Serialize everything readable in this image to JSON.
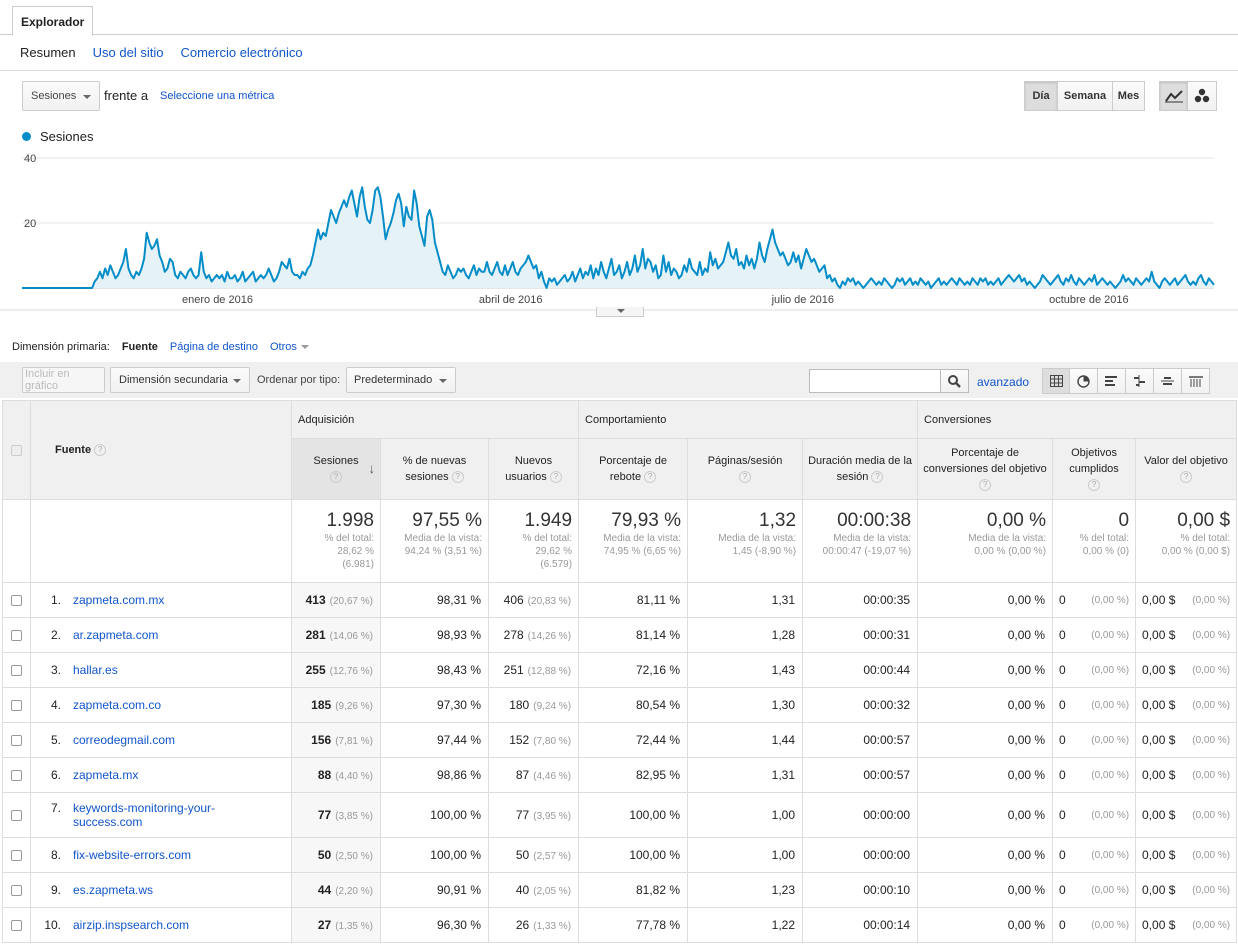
{
  "top_tab": "Explorador",
  "subnav": {
    "current": "Resumen",
    "links": [
      "Uso del sitio",
      "Comercio electrónico"
    ]
  },
  "controls": {
    "metric": "Sesiones",
    "vs_label": "frente a",
    "select_metric": "Seleccione una métrica",
    "periods": [
      "Día",
      "Semana",
      "Mes"
    ],
    "active_period": "Día"
  },
  "chart_data": {
    "type": "area",
    "title": "",
    "series": [
      {
        "name": "Sesiones",
        "color": "#058dc7"
      }
    ],
    "ylim": [
      0,
      40
    ],
    "yticks": [
      "40",
      "20"
    ],
    "xticks": [
      "enero de 2016",
      "abril de 2016",
      "julio de 2016",
      "octubre de 2016"
    ],
    "values": [
      0,
      0,
      0,
      0,
      0,
      0,
      0,
      0,
      0,
      0,
      0,
      0,
      0,
      0,
      0,
      0,
      0,
      0,
      0,
      0,
      0,
      0,
      0,
      0,
      0,
      0,
      0,
      0,
      2,
      3,
      5,
      3,
      6,
      4,
      7,
      5,
      3,
      4,
      6,
      8,
      12,
      6,
      4,
      3,
      5,
      4,
      6,
      9,
      17,
      14,
      12,
      13,
      15,
      10,
      8,
      5,
      6,
      9,
      8,
      4,
      3,
      5,
      4,
      3,
      5,
      6,
      4,
      3,
      4,
      11,
      5,
      3,
      4,
      2,
      3,
      4,
      3,
      4,
      2,
      5,
      3,
      3,
      4,
      2,
      3,
      5,
      2,
      3,
      4,
      5,
      2,
      3,
      4,
      3,
      4,
      6,
      4,
      2,
      3,
      5,
      8,
      7,
      6,
      9,
      5,
      4,
      4,
      3,
      5,
      4,
      6,
      7,
      10,
      14,
      18,
      15,
      17,
      16,
      20,
      24,
      22,
      20,
      23,
      25,
      27,
      25,
      28,
      30,
      26,
      22,
      28,
      31,
      25,
      21,
      20,
      24,
      30,
      31,
      28,
      22,
      15,
      18,
      20,
      23,
      27,
      29,
      26,
      19,
      25,
      22,
      21,
      30,
      26,
      19,
      16,
      13,
      22,
      24,
      21,
      14,
      11,
      8,
      5,
      4,
      7,
      5,
      3,
      4,
      6,
      5,
      6,
      4,
      3,
      5,
      7,
      4,
      6,
      5,
      5,
      8,
      5,
      4,
      6,
      8,
      5,
      4,
      7,
      4,
      6,
      8,
      5,
      4,
      6,
      7,
      8,
      10,
      8,
      6,
      7,
      3,
      5,
      2,
      0,
      3,
      2,
      3,
      1,
      2,
      3,
      4,
      2,
      3,
      5,
      2,
      4,
      6,
      3,
      5,
      4,
      7,
      3,
      6,
      4,
      8,
      5,
      3,
      6,
      9,
      4,
      5,
      7,
      3,
      5,
      8,
      4,
      6,
      10,
      5,
      7,
      12,
      6,
      9,
      8,
      5,
      7,
      3,
      4,
      10,
      5,
      8,
      4,
      6,
      5,
      3,
      4,
      7,
      5,
      9,
      6,
      5,
      4,
      8,
      4,
      6,
      5,
      11,
      7,
      9,
      6,
      7,
      8,
      11,
      14,
      10,
      9,
      12,
      7,
      8,
      6,
      10,
      7,
      9,
      6,
      9,
      14,
      10,
      8,
      12,
      15,
      18,
      14,
      12,
      10,
      11,
      9,
      7,
      8,
      11,
      8,
      10,
      6,
      9,
      12,
      10,
      8,
      9,
      7,
      5,
      6,
      7,
      3,
      4,
      2,
      3,
      1,
      0,
      2,
      1,
      3,
      2,
      3,
      1,
      2,
      1,
      0,
      1,
      2,
      3,
      2,
      1,
      2,
      1,
      3,
      2,
      1,
      0,
      1,
      3,
      2,
      3,
      1,
      2,
      3,
      1,
      2,
      1,
      3,
      2,
      1,
      2,
      0,
      1,
      2,
      3,
      1,
      2,
      1,
      2,
      3,
      2,
      1,
      3,
      2,
      1,
      2,
      1,
      3,
      2,
      1,
      3,
      2,
      3,
      1,
      2,
      1,
      2,
      3,
      1,
      2,
      3,
      4,
      3,
      2,
      3,
      4,
      2,
      3,
      1,
      2,
      1,
      0,
      1,
      2,
      4,
      3,
      2,
      1,
      2,
      3,
      4,
      2,
      1,
      3,
      2,
      4,
      2,
      1,
      3,
      2,
      1,
      2,
      3,
      2,
      4,
      1,
      2,
      3,
      2,
      1,
      2,
      1,
      0,
      1,
      2,
      4,
      2,
      3,
      2,
      1,
      3,
      2,
      1,
      2,
      3,
      2,
      5,
      2,
      1,
      0,
      2,
      3,
      2,
      1,
      2,
      3,
      1,
      2,
      3,
      4,
      2,
      1,
      2,
      1,
      3,
      4,
      2,
      1,
      3,
      2,
      1
    ]
  },
  "dimension": {
    "label": "Dimensión primaria:",
    "current": "Fuente",
    "link": "Página de destino",
    "others": "Otros"
  },
  "toolbar": {
    "plot_rows": "Incluir en gráfico",
    "secondary": "Dimensión secundaria",
    "sort_label": "Ordenar por tipo:",
    "sort_value": "Predeterminado",
    "advanced": "avanzado"
  },
  "table": {
    "groups": {
      "acq": "Adquisición",
      "beh": "Comportamiento",
      "conv": "Conversiones"
    },
    "headers": {
      "source": "Fuente",
      "sessions": "Sesiones",
      "new_sessions": "% de nuevas sesiones",
      "new_users": "Nuevos usuarios",
      "bounce": "Porcentaje de rebote",
      "pages": "Páginas/sesión",
      "duration": "Duración media de la sesión",
      "conv_rate": "Porcentaje de conversiones del objetivo",
      "goals": "Objetivos cumplidos",
      "goal_value": "Valor del objetivo"
    },
    "totals": {
      "sessions": {
        "big": "1.998",
        "s1": "% del total:",
        "s2": "28,62 %",
        "s3": "(6.981)"
      },
      "new_sessions": {
        "big": "97,55 %",
        "s1": "Media de la vista:",
        "s2": "94,24 % (3,51 %)"
      },
      "new_users": {
        "big": "1.949",
        "s1": "% del total:",
        "s2": "29,62 %",
        "s3": "(6.579)"
      },
      "bounce": {
        "big": "79,93 %",
        "s1": "Media de la vista:",
        "s2": "74,95 % (6,65 %)"
      },
      "pages": {
        "big": "1,32",
        "s1": "Media de la vista:",
        "s2": "1,45 (-8,90 %)"
      },
      "duration": {
        "big": "00:00:38",
        "s1": "Media de la vista:",
        "s2": "00:00:47 (-19,07 %)"
      },
      "conv_rate": {
        "big": "0,00 %",
        "s1": "Media de la vista:",
        "s2": "0,00 % (0,00 %)"
      },
      "goals": {
        "big": "0",
        "s1": "% del total:",
        "s2": "0,00 % (0)"
      },
      "goal_value": {
        "big": "0,00 $",
        "s1": "% del total:",
        "s2": "0,00 % (0,00 $)"
      }
    },
    "rows": [
      {
        "idx": "1.",
        "source": "zapmeta.com.mx",
        "sessions": "413",
        "sessions_pct": "(20,67 %)",
        "new_sessions": "98,31 %",
        "new_users": "406",
        "new_users_pct": "(20,83 %)",
        "bounce": "81,11 %",
        "pages": "1,31",
        "duration": "00:00:35",
        "conv_rate": "0,00 %",
        "goals": "0",
        "goals_pct": "(0,00 %)",
        "value": "0,00 $",
        "value_pct": "(0,00 %)"
      },
      {
        "idx": "2.",
        "source": "ar.zapmeta.com",
        "sessions": "281",
        "sessions_pct": "(14,06 %)",
        "new_sessions": "98,93 %",
        "new_users": "278",
        "new_users_pct": "(14,26 %)",
        "bounce": "81,14 %",
        "pages": "1,28",
        "duration": "00:00:31",
        "conv_rate": "0,00 %",
        "goals": "0",
        "goals_pct": "(0,00 %)",
        "value": "0,00 $",
        "value_pct": "(0,00 %)"
      },
      {
        "idx": "3.",
        "source": "hallar.es",
        "sessions": "255",
        "sessions_pct": "(12,76 %)",
        "new_sessions": "98,43 %",
        "new_users": "251",
        "new_users_pct": "(12,88 %)",
        "bounce": "72,16 %",
        "pages": "1,43",
        "duration": "00:00:44",
        "conv_rate": "0,00 %",
        "goals": "0",
        "goals_pct": "(0,00 %)",
        "value": "0,00 $",
        "value_pct": "(0,00 %)"
      },
      {
        "idx": "4.",
        "source": "zapmeta.com.co",
        "sessions": "185",
        "sessions_pct": "(9,26 %)",
        "new_sessions": "97,30 %",
        "new_users": "180",
        "new_users_pct": "(9,24 %)",
        "bounce": "80,54 %",
        "pages": "1,30",
        "duration": "00:00:32",
        "conv_rate": "0,00 %",
        "goals": "0",
        "goals_pct": "(0,00 %)",
        "value": "0,00 $",
        "value_pct": "(0,00 %)"
      },
      {
        "idx": "5.",
        "source": "correodegmail.com",
        "sessions": "156",
        "sessions_pct": "(7,81 %)",
        "new_sessions": "97,44 %",
        "new_users": "152",
        "new_users_pct": "(7,80 %)",
        "bounce": "72,44 %",
        "pages": "1,44",
        "duration": "00:00:57",
        "conv_rate": "0,00 %",
        "goals": "0",
        "goals_pct": "(0,00 %)",
        "value": "0,00 $",
        "value_pct": "(0,00 %)"
      },
      {
        "idx": "6.",
        "source": "zapmeta.mx",
        "sessions": "88",
        "sessions_pct": "(4,40 %)",
        "new_sessions": "98,86 %",
        "new_users": "87",
        "new_users_pct": "(4,46 %)",
        "bounce": "82,95 %",
        "pages": "1,31",
        "duration": "00:00:57",
        "conv_rate": "0,00 %",
        "goals": "0",
        "goals_pct": "(0,00 %)",
        "value": "0,00 $",
        "value_pct": "(0,00 %)"
      },
      {
        "idx": "7.",
        "source": "keywords-monitoring-your-success.com",
        "sessions": "77",
        "sessions_pct": "(3,85 %)",
        "new_sessions": "100,00 %",
        "new_users": "77",
        "new_users_pct": "(3,95 %)",
        "bounce": "100,00 %",
        "pages": "1,00",
        "duration": "00:00:00",
        "conv_rate": "0,00 %",
        "goals": "0",
        "goals_pct": "(0,00 %)",
        "value": "0,00 $",
        "value_pct": "(0,00 %)"
      },
      {
        "idx": "8.",
        "source": "fix-website-errors.com",
        "sessions": "50",
        "sessions_pct": "(2,50 %)",
        "new_sessions": "100,00 %",
        "new_users": "50",
        "new_users_pct": "(2,57 %)",
        "bounce": "100,00 %",
        "pages": "1,00",
        "duration": "00:00:00",
        "conv_rate": "0,00 %",
        "goals": "0",
        "goals_pct": "(0,00 %)",
        "value": "0,00 $",
        "value_pct": "(0,00 %)"
      },
      {
        "idx": "9.",
        "source": "es.zapmeta.ws",
        "sessions": "44",
        "sessions_pct": "(2,20 %)",
        "new_sessions": "90,91 %",
        "new_users": "40",
        "new_users_pct": "(2,05 %)",
        "bounce": "81,82 %",
        "pages": "1,23",
        "duration": "00:00:10",
        "conv_rate": "0,00 %",
        "goals": "0",
        "goals_pct": "(0,00 %)",
        "value": "0,00 $",
        "value_pct": "(0,00 %)"
      },
      {
        "idx": "10.",
        "source": "airzip.inspsearch.com",
        "sessions": "27",
        "sessions_pct": "(1,35 %)",
        "new_sessions": "96,30 %",
        "new_users": "26",
        "new_users_pct": "(1,33 %)",
        "bounce": "77,78 %",
        "pages": "1,22",
        "duration": "00:00:14",
        "conv_rate": "0,00 %",
        "goals": "0",
        "goals_pct": "(0,00 %)",
        "value": "0,00 $",
        "value_pct": "(0,00 %)"
      }
    ]
  }
}
